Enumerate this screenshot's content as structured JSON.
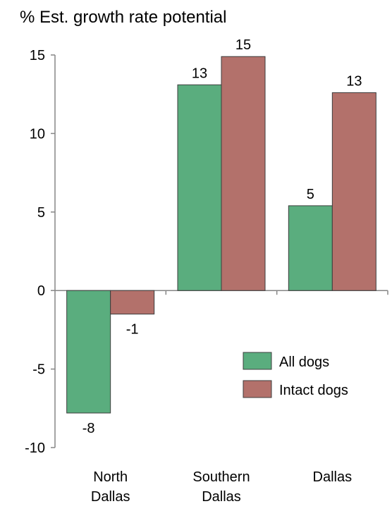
{
  "chart_data": {
    "type": "bar",
    "title": "% Est. growth rate potential",
    "xlabel": "",
    "ylabel": "",
    "ylim": [
      -10,
      15
    ],
    "yticks": [
      -10,
      -5,
      0,
      5,
      10,
      15
    ],
    "grid": false,
    "legend_position": "bottom-right",
    "categories": [
      [
        "North",
        "Dallas"
      ],
      [
        "Southern",
        "Dallas"
      ],
      [
        "Dallas"
      ]
    ],
    "series": [
      {
        "name": "All dogs",
        "color": "#5aad7e",
        "values": [
          -7.8,
          13.1,
          5.4
        ],
        "labels": [
          "-8",
          "13",
          "5"
        ]
      },
      {
        "name": "Intact dogs",
        "color": "#b3716b",
        "values": [
          -1.5,
          14.9,
          12.6
        ],
        "labels": [
          "-1",
          "15",
          "13"
        ]
      }
    ]
  }
}
